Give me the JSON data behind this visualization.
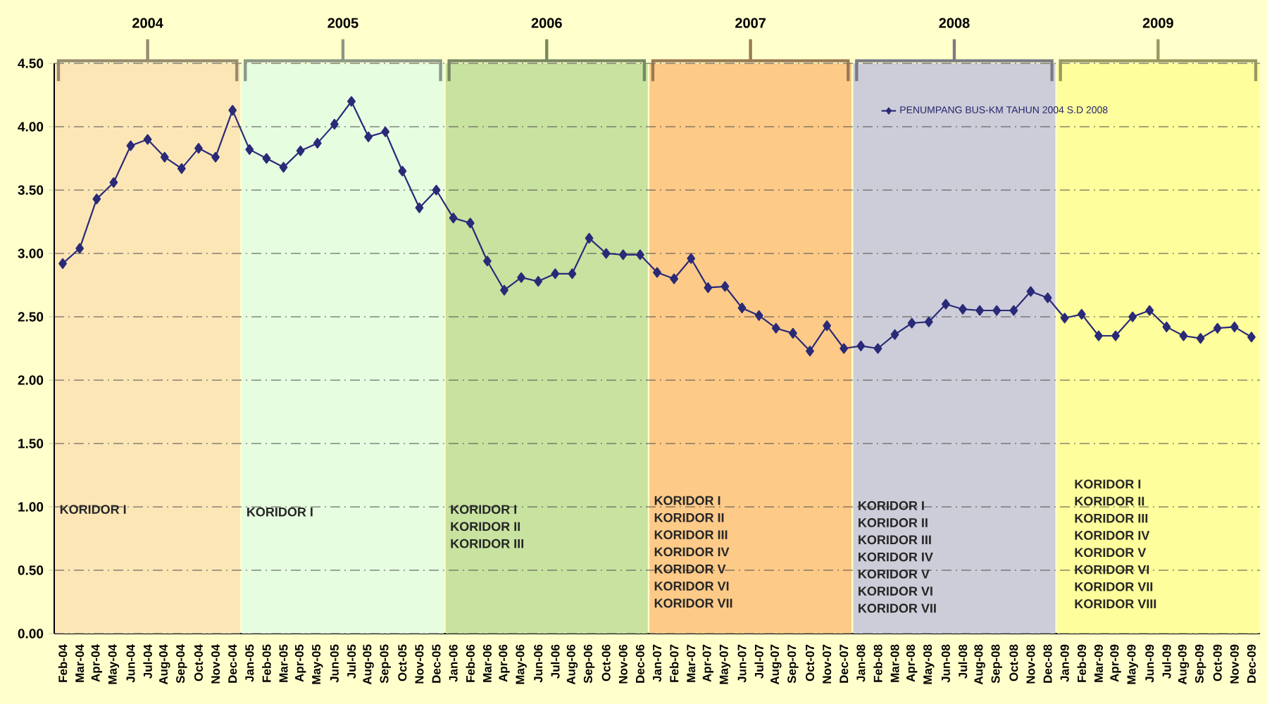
{
  "chart_data": {
    "type": "line",
    "categories": [
      "Feb-04",
      "Mar-04",
      "Apr-04",
      "May-04",
      "Jun-04",
      "Jul-04",
      "Aug-04",
      "Sep-04",
      "Oct-04",
      "Nov-04",
      "Dec-04",
      "Jan-05",
      "Feb-05",
      "Mar-05",
      "Apr-05",
      "May-05",
      "Jun-05",
      "Jul-05",
      "Aug-05",
      "Sep-05",
      "Oct-05",
      "Nov-05",
      "Dec-05",
      "Jan-06",
      "Feb-06",
      "Mar-06",
      "Apr-06",
      "May-06",
      "Jun-06",
      "Jul-06",
      "Aug-06",
      "Sep-06",
      "Oct-06",
      "Nov-06",
      "Dec-06",
      "Jan-07",
      "Feb-07",
      "Mar-07",
      "Apr-07",
      "May-07",
      "Jun-07",
      "Jul-07",
      "Aug-07",
      "Sep-07",
      "Oct-07",
      "Nov-07",
      "Dec-07",
      "Jan-08",
      "Feb-08",
      "Mar-08",
      "Apr-08",
      "May-08",
      "Jun-08",
      "Jul-08",
      "Aug-08",
      "Sep-08",
      "Oct-08",
      "Nov-08",
      "Dec-08",
      "Jan-09",
      "Feb-09",
      "Mar-09",
      "Apr-09",
      "May-09",
      "Jun-09",
      "Jul-09",
      "Aug-09",
      "Sep-09",
      "Oct-09",
      "Nov-09",
      "Dec-09"
    ],
    "series": [
      {
        "name": "PENUMPANG BUS-KM TAHUN 2004 S.D 2008",
        "color": "#2a2a78",
        "values": [
          2.92,
          3.04,
          3.43,
          3.56,
          3.85,
          3.9,
          3.76,
          3.67,
          3.83,
          3.76,
          4.13,
          3.82,
          3.75,
          3.68,
          3.81,
          3.87,
          4.02,
          4.2,
          3.92,
          3.96,
          3.65,
          3.36,
          3.5,
          3.28,
          3.24,
          2.94,
          2.71,
          2.81,
          2.78,
          2.84,
          2.84,
          3.12,
          3.0,
          2.99,
          2.99,
          2.85,
          2.8,
          2.96,
          2.73,
          2.74,
          2.57,
          2.51,
          2.41,
          2.37,
          2.23,
          2.43,
          2.25,
          2.27,
          2.25,
          2.36,
          2.45,
          2.46,
          2.6,
          2.56,
          2.55,
          2.55,
          2.55,
          2.7,
          2.65,
          2.49,
          2.52,
          2.35,
          2.35,
          2.5,
          2.55,
          2.42,
          2.35,
          2.33,
          2.41,
          2.42,
          2.34
        ]
      }
    ],
    "ylim": [
      0,
      4.5
    ],
    "yticks": [
      {
        "value": 0,
        "label": "0.00"
      },
      {
        "value": 0.5,
        "label": "0.50"
      },
      {
        "value": 1,
        "label": "1.00"
      },
      {
        "value": 1.5,
        "label": "1.50"
      },
      {
        "value": 2,
        "label": "2.00"
      },
      {
        "value": 2.5,
        "label": "2.50"
      },
      {
        "value": 3,
        "label": "3.00"
      },
      {
        "value": 3.5,
        "label": "3.50"
      },
      {
        "value": 4,
        "label": "4.00"
      },
      {
        "value": 4.5,
        "label": "4.50"
      }
    ],
    "grid": "y",
    "legend": "top right",
    "marker": "diamond",
    "line_style": "solid",
    "bands": [
      {
        "axis": "x",
        "from": "Feb-04",
        "to": "Dec-04",
        "label": "2004",
        "color": "#fde6b6"
      },
      {
        "axis": "x",
        "from": "Jan-05",
        "to": "Dec-05",
        "label": "2005",
        "color": "#e6fde0"
      },
      {
        "axis": "x",
        "from": "Jan-06",
        "to": "Dec-06",
        "label": "2006",
        "color": "#c8e2a0"
      },
      {
        "axis": "x",
        "from": "Jan-07",
        "to": "Dec-07",
        "label": "2007",
        "color": "#fdca88"
      },
      {
        "axis": "x",
        "from": "Jan-08",
        "to": "Dec-08",
        "label": "2008",
        "color": "#cccdd8"
      },
      {
        "axis": "x",
        "from": "Jan-09",
        "to": "Dec-09",
        "label": "2009",
        "color": "#fefe9c"
      }
    ],
    "annotations": [
      "KORIDOR I",
      "KORIDOR I",
      "KORIDOR I",
      "KORIDOR II",
      "KORIDOR III",
      "KORIDOR I",
      "KORIDOR II",
      "KORIDOR III",
      "KORIDOR IV",
      "KORIDOR V",
      "KORIDOR VI",
      "KORIDOR VII",
      "KORIDOR I",
      "KORIDOR II",
      "KORIDOR III",
      "KORIDOR IV",
      "KORIDOR V",
      "KORIDOR VI",
      "KORIDOR VII",
      "KORIDOR I",
      "KORIDOR II",
      "KORIDOR III",
      "KORIDOR IV",
      "KORIDOR V",
      "KORIDOR VI",
      "KORIDOR VII",
      "KORIDOR VIII"
    ]
  }
}
